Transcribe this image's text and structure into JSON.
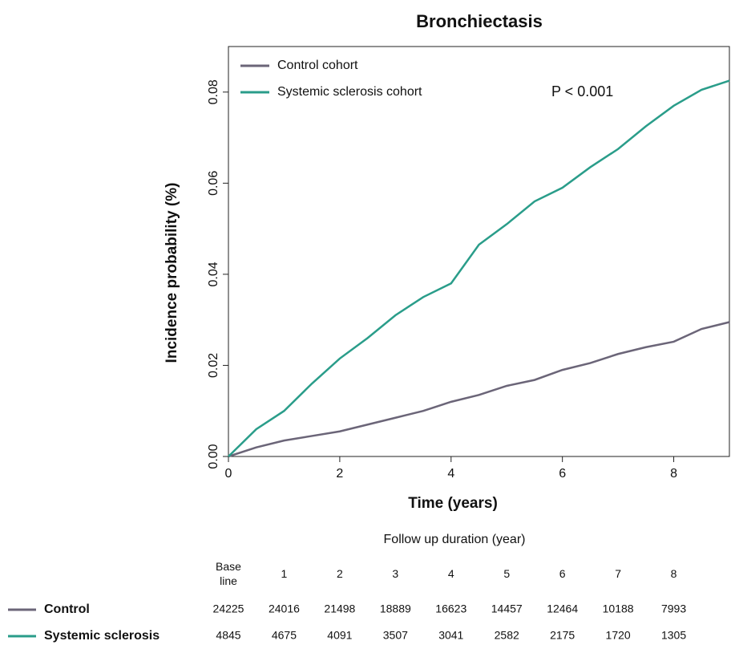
{
  "chart_data": {
    "type": "line",
    "title": "Bronchiectasis",
    "xlabel": "Time (years)",
    "ylabel": "Incidence probability (%)",
    "annotation": "P < 0.001",
    "x": [
      0,
      0.5,
      1,
      1.5,
      2,
      2.5,
      3,
      3.5,
      4,
      4.5,
      5,
      5.5,
      6,
      6.5,
      7,
      7.5,
      8,
      8.5,
      9
    ],
    "series": [
      {
        "name": "Control cohort",
        "color": "#6b6578",
        "values": [
          0,
          0.002,
          0.0035,
          0.0045,
          0.0055,
          0.007,
          0.0085,
          0.01,
          0.012,
          0.0135,
          0.0155,
          0.0168,
          0.019,
          0.0205,
          0.0225,
          0.024,
          0.0252,
          0.028,
          0.0295
        ]
      },
      {
        "name": "Systemic sclerosis cohort",
        "color": "#2a9d8a",
        "values": [
          0,
          0.006,
          0.01,
          0.016,
          0.0215,
          0.026,
          0.031,
          0.035,
          0.038,
          0.0465,
          0.051,
          0.056,
          0.059,
          0.0635,
          0.0675,
          0.0725,
          0.077,
          0.0805,
          0.0825
        ]
      }
    ],
    "xlim": [
      0,
      9
    ],
    "xticks": [
      0,
      2,
      4,
      6,
      8
    ],
    "ylim": [
      0,
      0.09
    ],
    "yticks": [
      {
        "value": 0,
        "label": "0.00"
      },
      {
        "value": 0.02,
        "label": "0.02"
      },
      {
        "value": 0.04,
        "label": "0.04"
      },
      {
        "value": 0.06,
        "label": "0.06"
      },
      {
        "value": 0.08,
        "label": "0.08"
      }
    ],
    "legend": "top-left",
    "risk_table": {
      "title": "Follow up duration (year)",
      "columns": [
        "Base line",
        "1",
        "2",
        "3",
        "4",
        "5",
        "6",
        "7",
        "8"
      ],
      "rows": [
        {
          "label": "Control",
          "values": [
            "24225",
            "24016",
            "21498",
            "18889",
            "16623",
            "14457",
            "12464",
            "10188",
            "7993"
          ]
        },
        {
          "label": "Systemic sclerosis",
          "values": [
            "4845",
            "4675",
            "4091",
            "3507",
            "3041",
            "2582",
            "2175",
            "1720",
            "1305"
          ]
        }
      ]
    }
  }
}
